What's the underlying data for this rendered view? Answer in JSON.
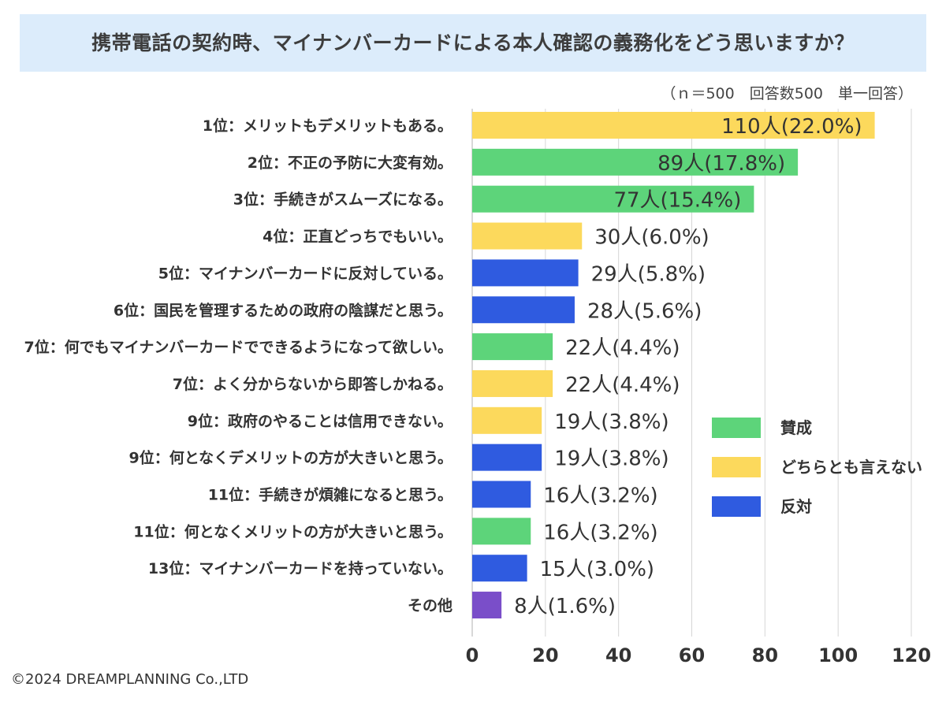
{
  "chart_data": {
    "type": "bar",
    "orientation": "horizontal",
    "title": "携帯電話の契約時、マイナンバーカードによる本人確認の義務化をどう思いますか？",
    "note": "（ｎ＝500　回答数500　単一回答）",
    "xlim": [
      0,
      120
    ],
    "xticks": [
      0,
      20,
      40,
      60,
      80,
      100,
      120
    ],
    "grid": "vertical",
    "legend_position": "right",
    "legend": [
      {
        "key": "agree",
        "label": "賛成",
        "color": "#5dd47a"
      },
      {
        "key": "neutral",
        "label": "どちらとも言えない",
        "color": "#fcd95c"
      },
      {
        "key": "oppose",
        "label": "反対",
        "color": "#2f5be0"
      }
    ],
    "other_color": "#7a4ec9",
    "bars": [
      {
        "label": "1位：メリットもデメリットもある。",
        "value": 110,
        "value_label": "110人(22.0%)",
        "group": "neutral"
      },
      {
        "label": "2位：不正の予防に大変有効。",
        "value": 89,
        "value_label": "89人(17.8%)",
        "group": "agree"
      },
      {
        "label": "3位：手続きがスムーズになる。",
        "value": 77,
        "value_label": "77人(15.4%)",
        "group": "agree"
      },
      {
        "label": "4位：正直どっちでもいい。",
        "value": 30,
        "value_label": "30人(6.0%)",
        "group": "neutral"
      },
      {
        "label": "5位：マイナンバーカードに反対している。",
        "value": 29,
        "value_label": "29人(5.8%)",
        "group": "oppose"
      },
      {
        "label": "6位：国民を管理するための政府の陰謀だと思う。",
        "value": 28,
        "value_label": "28人(5.6%)",
        "group": "oppose"
      },
      {
        "label": "7位：何でもマイナンバーカードでできるようになって欲しい。",
        "value": 22,
        "value_label": "22人(4.4%)",
        "group": "agree"
      },
      {
        "label": "7位：よく分からないから即答しかねる。",
        "value": 22,
        "value_label": "22人(4.4%)",
        "group": "neutral"
      },
      {
        "label": "9位：政府のやることは信用できない。",
        "value": 19,
        "value_label": "19人(3.8%)",
        "group": "neutral"
      },
      {
        "label": "9位：何となくデメリットの方が大きいと思う。",
        "value": 19,
        "value_label": "19人(3.8%)",
        "group": "oppose"
      },
      {
        "label": "11位：手続きが煩雑になると思う。",
        "value": 16,
        "value_label": "16人(3.2%)",
        "group": "oppose"
      },
      {
        "label": "11位：何となくメリットの方が大きいと思う。",
        "value": 16,
        "value_label": "16人(3.2%)",
        "group": "agree"
      },
      {
        "label": "13位：マイナンバーカードを持っていない。",
        "value": 15,
        "value_label": "15人(3.0%)",
        "group": "oppose"
      },
      {
        "label": "その他",
        "value": 8,
        "value_label": "8人(1.6%)",
        "group": "other"
      }
    ]
  },
  "footer": {
    "copyright": "©2024 DREAMPLANNING Co.,LTD"
  }
}
